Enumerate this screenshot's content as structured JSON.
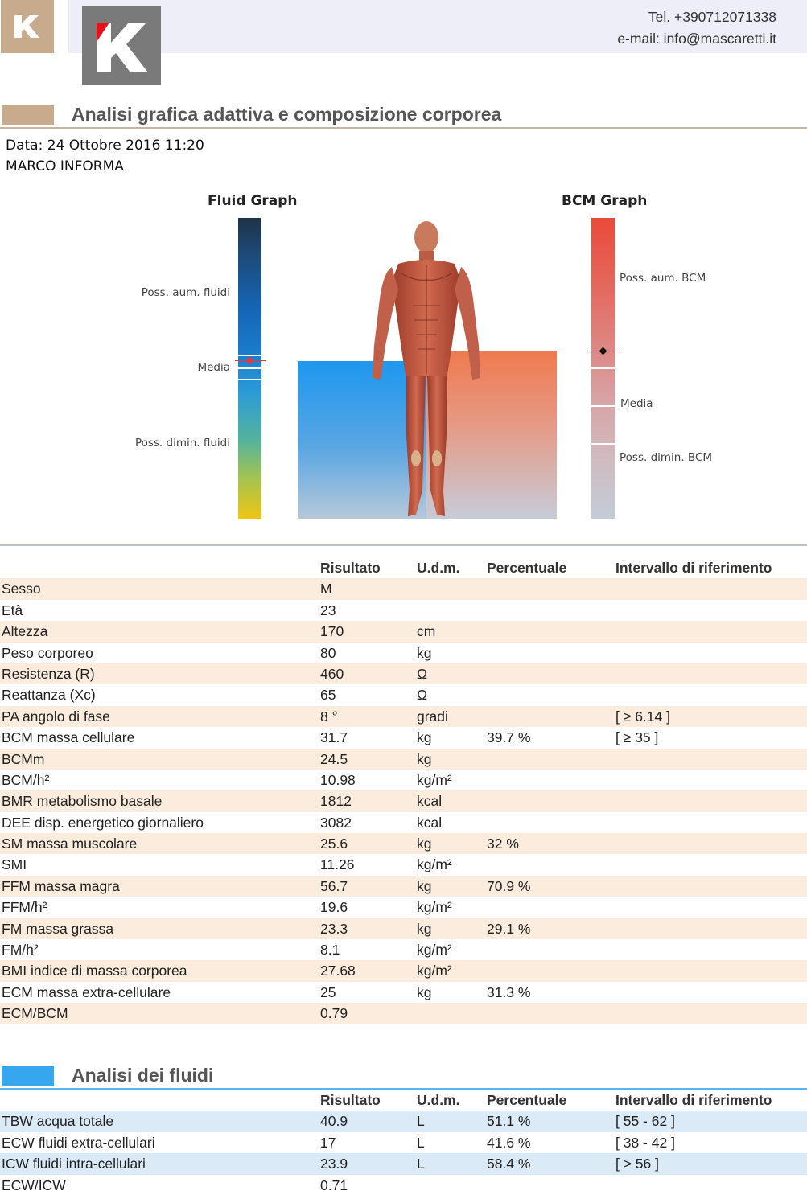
{
  "header": {
    "phone": "Tel. +390712071338",
    "email": "e-mail: info@mascaretti.it"
  },
  "colors": {
    "brown_accent": "#c7ab8c",
    "blue_accent": "#36a6ee",
    "header_band": "#eeeef9",
    "row_beige": "#fbecdd",
    "row_blue": "#dbeaf7"
  },
  "composition_section": {
    "title": "Analisi grafica adattiva e composizione corporea",
    "date_line": "Data: 24 Ottobre 2016   11:20",
    "name": "MARCO INFORMA"
  },
  "fluid_graph": {
    "title": "Fluid Graph",
    "label_top": "Poss. aum. fluidi",
    "label_mid": "Media",
    "label_bottom": "Poss. dimin. fluidi"
  },
  "bcm_graph": {
    "title": "BCM Graph",
    "label_top": "Poss. aum. BCM",
    "label_mid": "Media",
    "label_bottom": "Poss. dimin. BCM"
  },
  "composition_table": {
    "headers": [
      "",
      "Risultato",
      "U.d.m.",
      "Percentuale",
      "Intervallo di riferimento"
    ],
    "rows": [
      [
        "Sesso",
        "M",
        "",
        "",
        ""
      ],
      [
        "Età",
        "23",
        "",
        "",
        ""
      ],
      [
        "Altezza",
        "170",
        "cm",
        "",
        ""
      ],
      [
        "Peso corporeo",
        "80",
        "kg",
        "",
        ""
      ],
      [
        "Resistenza (R)",
        "460",
        "Ω",
        "",
        ""
      ],
      [
        "Reattanza (Xc)",
        "65",
        "Ω",
        "",
        ""
      ],
      [
        "PA angolo di fase",
        "8 °",
        "gradi",
        "",
        "[ ≥ 6.14 ]"
      ],
      [
        "BCM massa cellulare",
        "31.7",
        "kg",
        "39.7 %",
        "[ ≥ 35 ]"
      ],
      [
        "BCMm",
        "24.5",
        "kg",
        "",
        ""
      ],
      [
        "BCM/h²",
        "10.98",
        "kg/m²",
        "",
        ""
      ],
      [
        "BMR metabolismo basale",
        "1812",
        "kcal",
        "",
        ""
      ],
      [
        "DEE disp. energetico giornaliero",
        "3082",
        "kcal",
        "",
        ""
      ],
      [
        "SM massa muscolare",
        "25.6",
        "kg",
        "32 %",
        ""
      ],
      [
        "SMI",
        "11.26",
        "kg/m²",
        "",
        ""
      ],
      [
        "FFM massa magra",
        "56.7",
        "kg",
        "70.9 %",
        ""
      ],
      [
        "FFM/h²",
        "19.6",
        "kg/m²",
        "",
        ""
      ],
      [
        "FM massa grassa",
        "23.3",
        "kg",
        "29.1 %",
        ""
      ],
      [
        "FM/h²",
        "8.1",
        "kg/m²",
        "",
        ""
      ],
      [
        "BMI indice di massa corporea",
        "27.68",
        "kg/m²",
        "",
        ""
      ],
      [
        "ECM massa extra-cellulare",
        "25",
        "kg",
        "31.3 %",
        ""
      ],
      [
        "ECM/BCM",
        "0.79",
        "",
        "",
        ""
      ]
    ]
  },
  "fluids_section": {
    "title": "Analisi dei fluidi"
  },
  "fluids_table": {
    "headers": [
      "",
      "Risultato",
      "U.d.m.",
      "Percentuale",
      "Intervallo di riferimento"
    ],
    "rows": [
      [
        "TBW acqua totale",
        "40.9",
        "L",
        "51.1 %",
        "[ 55 - 62 ]"
      ],
      [
        "ECW fluidi extra-cellulari",
        "17",
        "L",
        "41.6 %",
        "[ 38 - 42 ]"
      ],
      [
        "ICW fluidi intra-cellulari",
        "23.9",
        "L",
        "58.4 %",
        "[ > 56 ]"
      ],
      [
        "ECW/ICW",
        "0.71",
        "",
        "",
        ""
      ]
    ]
  }
}
